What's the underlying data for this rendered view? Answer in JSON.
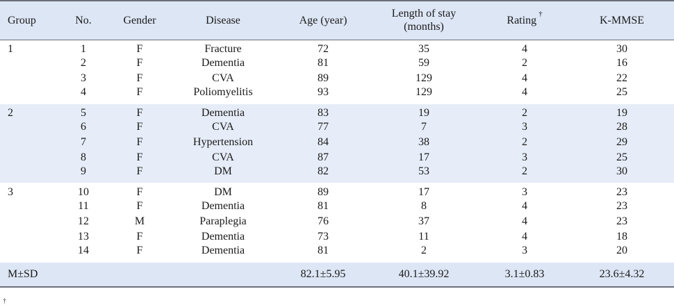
{
  "headers": {
    "group": "Group",
    "no": "No.",
    "gender": "Gender",
    "disease": "Disease",
    "age": "Age (year)",
    "stay_line1": "Length of stay",
    "stay_line2": "(months)",
    "rating": "Rating",
    "rating_mark": "†",
    "kmmse": "K-MMSE"
  },
  "groups": [
    {
      "label": "1",
      "rows": [
        {
          "no": "1",
          "gender": "F",
          "disease": "Fracture",
          "age": "72",
          "stay": "35",
          "rating": "4",
          "kmmse": "30"
        },
        {
          "no": "2",
          "gender": "F",
          "disease": "Dementia",
          "age": "81",
          "stay": "59",
          "rating": "2",
          "kmmse": "16"
        },
        {
          "no": "3",
          "gender": "F",
          "disease": "CVA",
          "age": "89",
          "stay": "129",
          "rating": "4",
          "kmmse": "22"
        },
        {
          "no": "4",
          "gender": "F",
          "disease": "Poliomyelitis",
          "age": "93",
          "stay": "129",
          "rating": "4",
          "kmmse": "25"
        }
      ]
    },
    {
      "label": "2",
      "rows": [
        {
          "no": "5",
          "gender": "F",
          "disease": "Dementia",
          "age": "83",
          "stay": "19",
          "rating": "2",
          "kmmse": "19"
        },
        {
          "no": "6",
          "gender": "F",
          "disease": "CVA",
          "age": "77",
          "stay": "7",
          "rating": "3",
          "kmmse": "28"
        },
        {
          "no": "7",
          "gender": "F",
          "disease": "Hypertension",
          "age": "84",
          "stay": "38",
          "rating": "2",
          "kmmse": "29"
        },
        {
          "no": "8",
          "gender": "F",
          "disease": "CVA",
          "age": "87",
          "stay": "17",
          "rating": "3",
          "kmmse": "25"
        },
        {
          "no": "9",
          "gender": "F",
          "disease": "DM",
          "age": "82",
          "stay": "53",
          "rating": "2",
          "kmmse": "30"
        }
      ]
    },
    {
      "label": "3",
      "rows": [
        {
          "no": "10",
          "gender": "F",
          "disease": "DM",
          "age": "89",
          "stay": "17",
          "rating": "3",
          "kmmse": "23"
        },
        {
          "no": "11",
          "gender": "F",
          "disease": "Dementia",
          "age": "81",
          "stay": "8",
          "rating": "4",
          "kmmse": "23"
        },
        {
          "no": "12",
          "gender": "M",
          "disease": "Paraplegia",
          "age": "76",
          "stay": "37",
          "rating": "4",
          "kmmse": "23"
        },
        {
          "no": "13",
          "gender": "F",
          "disease": "Dementia",
          "age": "73",
          "stay": "11",
          "rating": "4",
          "kmmse": "18"
        },
        {
          "no": "14",
          "gender": "F",
          "disease": "Dementia",
          "age": "81",
          "stay": "2",
          "rating": "3",
          "kmmse": "20"
        }
      ]
    }
  ],
  "summary": {
    "label": "M±SD",
    "age": "82.1±5.95",
    "stay": "40.1±39.92",
    "rating": "3.1±0.83",
    "kmmse": "23.6±4.32"
  },
  "footnote_mark": "†"
}
